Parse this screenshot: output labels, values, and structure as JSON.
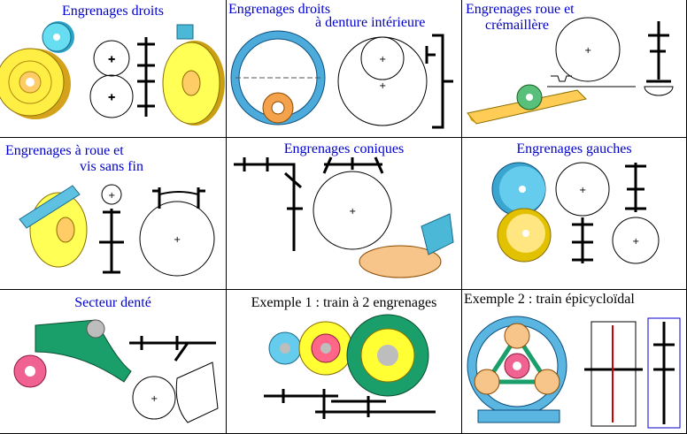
{
  "colors": {
    "title_blue": "#0000cc",
    "title_black": "#000000",
    "gear_yellow": "#ffff33",
    "gear_orange": "#f7c58a",
    "gear_cyan": "#66ccee",
    "gear_green": "#1a9e6a",
    "gear_pink": "#f06292",
    "line": "#000000"
  },
  "cells": [
    {
      "id": "spur",
      "title_line1": "Engrenages droits",
      "title_line2": ""
    },
    {
      "id": "internal",
      "title_line1": "Engrenages droits",
      "title_line2": "à denture intérieure"
    },
    {
      "id": "rack",
      "title_line1": "Engrenages roue et",
      "title_line2": "crémaillère"
    },
    {
      "id": "worm",
      "title_line1": "Engrenages à roue et",
      "title_line2": "vis sans fin"
    },
    {
      "id": "bevel",
      "title_line1": "Engrenages coniques",
      "title_line2": ""
    },
    {
      "id": "crossed",
      "title_line1": "Engrenages gauches",
      "title_line2": ""
    },
    {
      "id": "sector",
      "title_line1": "Secteur denté",
      "title_line2": ""
    },
    {
      "id": "train",
      "title_line1": "Exemple 1 : train à 2 engrenages",
      "title_line2": ""
    },
    {
      "id": "epicyclic",
      "title_line1": "Exemple 2 : train épicycloïdal",
      "title_line2": ""
    }
  ]
}
